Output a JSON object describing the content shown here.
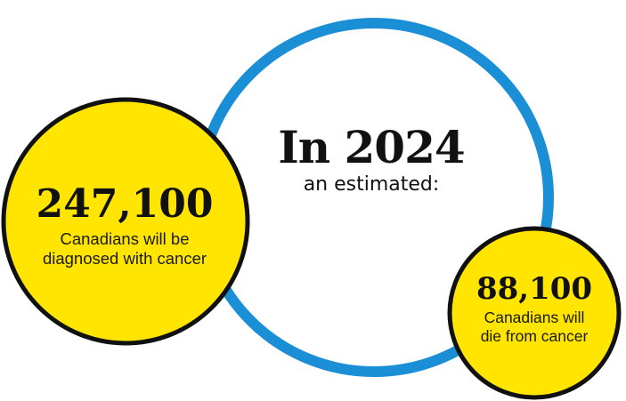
{
  "headline": {
    "year_text": "In 2024",
    "subline": "an estimated:"
  },
  "stats": {
    "diagnosed": {
      "value": "247,100",
      "line1": "Canadians will be",
      "line2": "diagnosed with cancer"
    },
    "deaths": {
      "value": "88,100",
      "line1": "Canadians will",
      "line2": "die from cancer"
    }
  },
  "colors": {
    "ring": "#1b8fd6",
    "circle_fill": "#ffe500",
    "circle_stroke": "#111111",
    "text": "#111111"
  }
}
